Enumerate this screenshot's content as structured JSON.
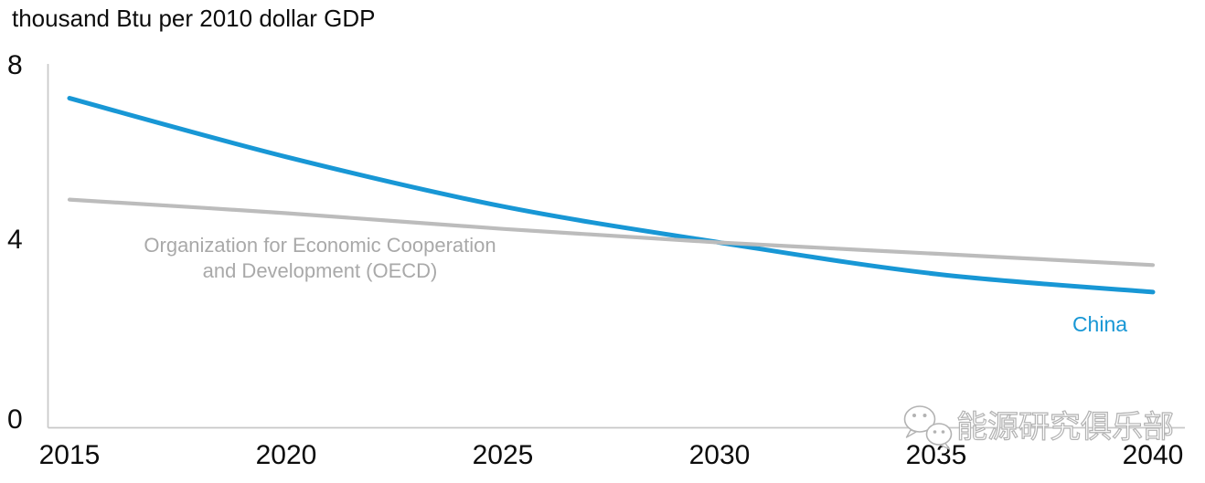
{
  "chart_data": {
    "type": "line",
    "title": "thousand Btu per 2010 dollar GDP",
    "xlabel": "",
    "ylabel": "thousand Btu per 2010 dollar GDP",
    "x": [
      2015,
      2020,
      2025,
      2030,
      2035,
      2040
    ],
    "series": [
      {
        "id": "china",
        "name": "China",
        "values": [
          7.3,
          6.0,
          4.9,
          4.1,
          3.4,
          3.0
        ],
        "color": "#1897d5"
      },
      {
        "id": "oecd",
        "name": "Organization for Economic Cooperation and Development (OECD)",
        "values": [
          5.05,
          4.75,
          4.4,
          4.1,
          3.85,
          3.6
        ],
        "color": "#bcbcbc"
      }
    ],
    "xlim": [
      2015,
      2040
    ],
    "ylim": [
      0,
      8
    ],
    "xtick_labels": [
      "2015",
      "2020",
      "2025",
      "2030",
      "2035",
      "2040"
    ],
    "ytick_labels": [
      "8",
      "4",
      "0"
    ],
    "ytick_values": [
      8,
      4,
      0
    ],
    "grid": false,
    "legend_position": "inline-annotations"
  },
  "annotations": {
    "oecd_line1": "Organization for Economic Cooperation",
    "oecd_line2": "and Development (OECD)",
    "china": "China"
  },
  "watermark": {
    "text": "能源研究俱乐部",
    "icon": "wechat-icon"
  },
  "colors": {
    "china_line": "#1897d5",
    "oecd_line": "#bcbcbc",
    "axis_line": "#c8c8c8",
    "oecd_label_text": "#a9a9a9",
    "china_label_text": "#1897d5",
    "title_text": "#0c0c0c",
    "tick_text": "#0c0c0c",
    "watermark_outline": "#b3b3b3"
  }
}
